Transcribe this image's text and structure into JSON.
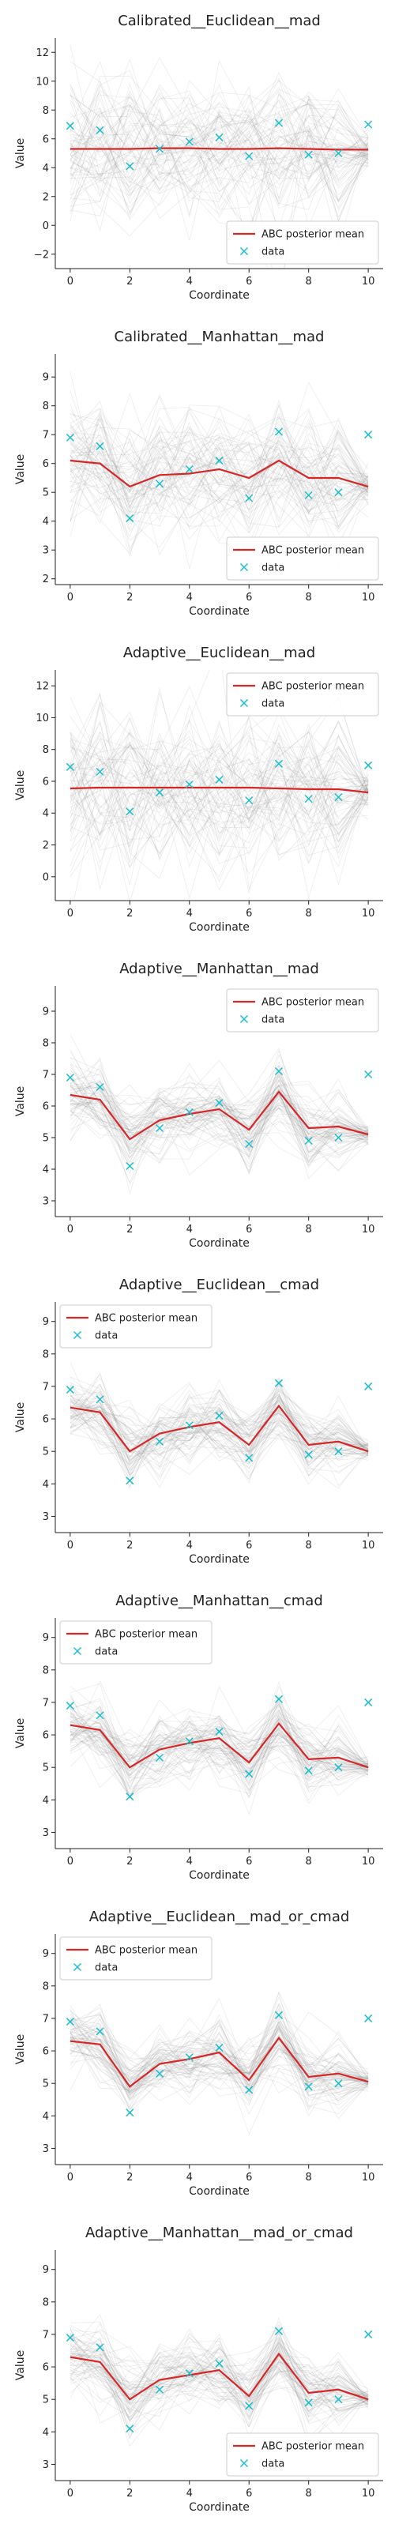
{
  "chart_data": [
    {
      "type": "line",
      "title": "Calibrated__Euclidean__mad",
      "xlabel": "Coordinate",
      "ylabel": "Value",
      "xlim": [
        -0.5,
        10.5
      ],
      "ylim": [
        -3,
        13
      ],
      "xticks": [
        0,
        2,
        4,
        6,
        8,
        10
      ],
      "yticks": [
        -2,
        0,
        2,
        4,
        6,
        8,
        10,
        12
      ],
      "legend_loc": "lower-right",
      "x": [
        0,
        1,
        2,
        3,
        4,
        5,
        6,
        7,
        8,
        9,
        10
      ],
      "series": [
        {
          "name": "ABC posterior mean",
          "style": "line",
          "color": "#d62728",
          "values": [
            5.3,
            5.3,
            5.3,
            5.35,
            5.35,
            5.3,
            5.3,
            5.35,
            5.3,
            5.25,
            5.25
          ]
        },
        {
          "name": "data",
          "style": "marker-x",
          "color": "#17becf",
          "values": [
            6.9,
            6.6,
            4.1,
            5.3,
            5.8,
            6.1,
            4.8,
            7.1,
            4.9,
            5.0,
            7.0
          ]
        }
      ]
    },
    {
      "type": "line",
      "title": "Calibrated__Manhattan__mad",
      "xlabel": "Coordinate",
      "ylabel": "Value",
      "xlim": [
        -0.5,
        10.5
      ],
      "ylim": [
        1.8,
        9.8
      ],
      "xticks": [
        0,
        2,
        4,
        6,
        8,
        10
      ],
      "yticks": [
        2,
        3,
        4,
        5,
        6,
        7,
        8,
        9
      ],
      "legend_loc": "lower-right",
      "x": [
        0,
        1,
        2,
        3,
        4,
        5,
        6,
        7,
        8,
        9,
        10
      ],
      "series": [
        {
          "name": "ABC posterior mean",
          "style": "line",
          "color": "#d62728",
          "values": [
            6.1,
            6.0,
            5.2,
            5.6,
            5.65,
            5.8,
            5.5,
            6.1,
            5.5,
            5.5,
            5.2
          ]
        },
        {
          "name": "data",
          "style": "marker-x",
          "color": "#17becf",
          "values": [
            6.9,
            6.6,
            4.1,
            5.3,
            5.8,
            6.1,
            4.8,
            7.1,
            4.9,
            5.0,
            7.0
          ]
        }
      ]
    },
    {
      "type": "line",
      "title": "Adaptive__Euclidean__mad",
      "xlabel": "Coordinate",
      "ylabel": "Value",
      "xlim": [
        -0.5,
        10.5
      ],
      "ylim": [
        -1.5,
        13
      ],
      "xticks": [
        0,
        2,
        4,
        6,
        8,
        10
      ],
      "yticks": [
        0,
        2,
        4,
        6,
        8,
        10,
        12
      ],
      "legend_loc": "upper-right",
      "x": [
        0,
        1,
        2,
        3,
        4,
        5,
        6,
        7,
        8,
        9,
        10
      ],
      "series": [
        {
          "name": "ABC posterior mean",
          "style": "line",
          "color": "#d62728",
          "values": [
            5.55,
            5.6,
            5.6,
            5.6,
            5.6,
            5.6,
            5.6,
            5.55,
            5.5,
            5.5,
            5.3
          ]
        },
        {
          "name": "data",
          "style": "marker-x",
          "color": "#17becf",
          "values": [
            6.9,
            6.6,
            4.1,
            5.3,
            5.8,
            6.1,
            4.8,
            7.1,
            4.9,
            5.0,
            7.0
          ]
        }
      ]
    },
    {
      "type": "line",
      "title": "Adaptive__Manhattan__mad",
      "xlabel": "Coordinate",
      "ylabel": "Value",
      "xlim": [
        -0.5,
        10.5
      ],
      "ylim": [
        2.5,
        9.8
      ],
      "xticks": [
        0,
        2,
        4,
        6,
        8,
        10
      ],
      "yticks": [
        3,
        4,
        5,
        6,
        7,
        8,
        9
      ],
      "legend_loc": "upper-right",
      "x": [
        0,
        1,
        2,
        3,
        4,
        5,
        6,
        7,
        8,
        9,
        10
      ],
      "series": [
        {
          "name": "ABC posterior mean",
          "style": "line",
          "color": "#d62728",
          "values": [
            6.35,
            6.2,
            4.95,
            5.55,
            5.75,
            5.9,
            5.25,
            6.45,
            5.3,
            5.35,
            5.1
          ]
        },
        {
          "name": "data",
          "style": "marker-x",
          "color": "#17becf",
          "values": [
            6.9,
            6.6,
            4.1,
            5.3,
            5.8,
            6.1,
            4.8,
            7.1,
            4.9,
            5.0,
            7.0
          ]
        }
      ]
    },
    {
      "type": "line",
      "title": "Adaptive__Euclidean__cmad",
      "xlabel": "Coordinate",
      "ylabel": "Value",
      "xlim": [
        -0.5,
        10.5
      ],
      "ylim": [
        2.5,
        9.6
      ],
      "xticks": [
        0,
        2,
        4,
        6,
        8,
        10
      ],
      "yticks": [
        3,
        4,
        5,
        6,
        7,
        8,
        9
      ],
      "legend_loc": "upper-left",
      "x": [
        0,
        1,
        2,
        3,
        4,
        5,
        6,
        7,
        8,
        9,
        10
      ],
      "series": [
        {
          "name": "ABC posterior mean",
          "style": "line",
          "color": "#d62728",
          "values": [
            6.35,
            6.2,
            5.0,
            5.55,
            5.75,
            5.9,
            5.2,
            6.4,
            5.2,
            5.3,
            5.0
          ]
        },
        {
          "name": "data",
          "style": "marker-x",
          "color": "#17becf",
          "values": [
            6.9,
            6.6,
            4.1,
            5.3,
            5.8,
            6.1,
            4.8,
            7.1,
            4.9,
            5.0,
            7.0
          ]
        }
      ]
    },
    {
      "type": "line",
      "title": "Adaptive__Manhattan__cmad",
      "xlabel": "Coordinate",
      "ylabel": "Value",
      "xlim": [
        -0.5,
        10.5
      ],
      "ylim": [
        2.5,
        9.6
      ],
      "xticks": [
        0,
        2,
        4,
        6,
        8,
        10
      ],
      "yticks": [
        3,
        4,
        5,
        6,
        7,
        8,
        9
      ],
      "legend_loc": "upper-left",
      "x": [
        0,
        1,
        2,
        3,
        4,
        5,
        6,
        7,
        8,
        9,
        10
      ],
      "series": [
        {
          "name": "ABC posterior mean",
          "style": "line",
          "color": "#d62728",
          "values": [
            6.3,
            6.15,
            5.0,
            5.55,
            5.75,
            5.9,
            5.15,
            6.35,
            5.25,
            5.3,
            5.0
          ]
        },
        {
          "name": "data",
          "style": "marker-x",
          "color": "#17becf",
          "values": [
            6.9,
            6.6,
            4.1,
            5.3,
            5.8,
            6.1,
            4.8,
            7.1,
            4.9,
            5.0,
            7.0
          ]
        }
      ]
    },
    {
      "type": "line",
      "title": "Adaptive__Euclidean__mad_or_cmad",
      "xlabel": "Coordinate",
      "ylabel": "Value",
      "xlim": [
        -0.5,
        10.5
      ],
      "ylim": [
        2.5,
        9.6
      ],
      "xticks": [
        0,
        2,
        4,
        6,
        8,
        10
      ],
      "yticks": [
        3,
        4,
        5,
        6,
        7,
        8,
        9
      ],
      "legend_loc": "upper-left",
      "x": [
        0,
        1,
        2,
        3,
        4,
        5,
        6,
        7,
        8,
        9,
        10
      ],
      "series": [
        {
          "name": "ABC posterior mean",
          "style": "line",
          "color": "#d62728",
          "values": [
            6.3,
            6.2,
            4.9,
            5.6,
            5.75,
            5.95,
            5.1,
            6.4,
            5.2,
            5.3,
            5.05
          ]
        },
        {
          "name": "data",
          "style": "marker-x",
          "color": "#17becf",
          "values": [
            6.9,
            6.6,
            4.1,
            5.3,
            5.8,
            6.1,
            4.8,
            7.1,
            4.9,
            5.0,
            7.0
          ]
        }
      ]
    },
    {
      "type": "line",
      "title": "Adaptive__Manhattan__mad_or_cmad",
      "xlabel": "Coordinate",
      "ylabel": "Value",
      "xlim": [
        -0.5,
        10.5
      ],
      "ylim": [
        2.5,
        9.6
      ],
      "xticks": [
        0,
        2,
        4,
        6,
        8,
        10
      ],
      "yticks": [
        3,
        4,
        5,
        6,
        7,
        8,
        9
      ],
      "legend_loc": "lower-right",
      "x": [
        0,
        1,
        2,
        3,
        4,
        5,
        6,
        7,
        8,
        9,
        10
      ],
      "series": [
        {
          "name": "ABC posterior mean",
          "style": "line",
          "color": "#d62728",
          "values": [
            6.3,
            6.15,
            5.0,
            5.6,
            5.75,
            5.9,
            5.1,
            6.4,
            5.2,
            5.3,
            5.0
          ]
        },
        {
          "name": "data",
          "style": "marker-x",
          "color": "#17becf",
          "values": [
            6.9,
            6.6,
            4.1,
            5.3,
            5.8,
            6.1,
            4.8,
            7.1,
            4.9,
            5.0,
            7.0
          ]
        }
      ]
    }
  ]
}
